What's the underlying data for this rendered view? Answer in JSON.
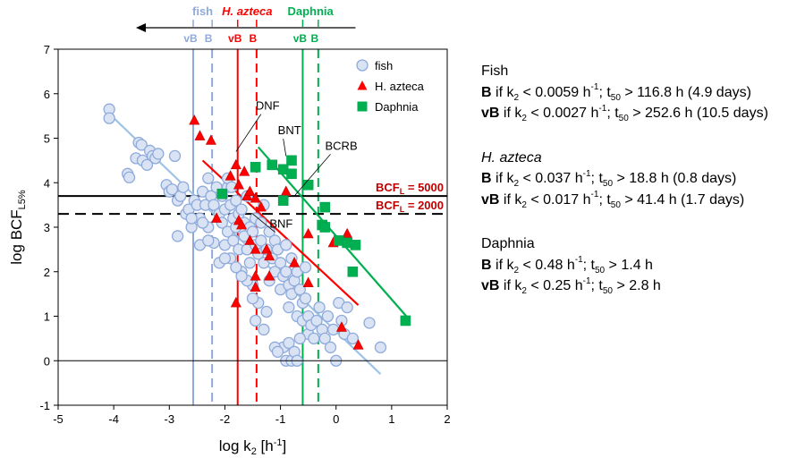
{
  "chart_data": {
    "type": "scatter",
    "title": "",
    "xlabel": "log k",
    "xlabel_sub": "2",
    "xlabel_unit_base": " [h",
    "xlabel_unit_sup": "-1",
    "xlabel_unit_close": "]",
    "ylabel": "log BCF",
    "ylabel_sub": "L5%",
    "xlim": [
      -5,
      2
    ],
    "ylim": [
      -1,
      7
    ],
    "xticks": [
      -5,
      -4,
      -3,
      -2,
      -1,
      0,
      1,
      2
    ],
    "yticks": [
      -1,
      0,
      1,
      2,
      3,
      4,
      5,
      6,
      7
    ],
    "grid": false,
    "legend_position": "top-right",
    "series": [
      {
        "name": "fish",
        "marker": "circle",
        "color": "#dae3f3",
        "edge_color": "#8eaadb",
        "points": [
          [
            -4.08,
            5.65
          ],
          [
            -4.08,
            5.45
          ],
          [
            -3.75,
            4.2
          ],
          [
            -3.72,
            4.12
          ],
          [
            -3.6,
            4.55
          ],
          [
            -3.55,
            4.9
          ],
          [
            -3.5,
            4.85
          ],
          [
            -3.48,
            4.5
          ],
          [
            -3.4,
            4.4
          ],
          [
            -3.35,
            4.72
          ],
          [
            -3.3,
            4.6
          ],
          [
            -3.25,
            4.55
          ],
          [
            -3.2,
            4.65
          ],
          [
            -3.05,
            3.95
          ],
          [
            -3.0,
            3.8
          ],
          [
            -2.95,
            3.85
          ],
          [
            -2.9,
            4.6
          ],
          [
            -2.85,
            3.6
          ],
          [
            -2.85,
            2.8
          ],
          [
            -2.8,
            3.7
          ],
          [
            -2.75,
            3.9
          ],
          [
            -2.7,
            3.3
          ],
          [
            -2.65,
            3.4
          ],
          [
            -2.6,
            3.0
          ],
          [
            -2.55,
            3.6
          ],
          [
            -2.5,
            3.5
          ],
          [
            -2.45,
            3.2
          ],
          [
            -2.45,
            2.6
          ],
          [
            -2.4,
            3.8
          ],
          [
            -2.35,
            3.5
          ],
          [
            -2.3,
            4.1
          ],
          [
            -2.3,
            3.0
          ],
          [
            -2.25,
            3.7
          ],
          [
            -2.2,
            2.65
          ],
          [
            -2.2,
            3.5
          ],
          [
            -2.15,
            3.9
          ],
          [
            -2.1,
            3.3
          ],
          [
            -2.1,
            2.2
          ],
          [
            -2.05,
            3.7
          ],
          [
            -2.05,
            3.1
          ],
          [
            -2.0,
            3.4
          ],
          [
            -2.0,
            2.6
          ],
          [
            -1.95,
            3.9
          ],
          [
            -1.95,
            2.9
          ],
          [
            -1.9,
            3.5
          ],
          [
            -1.9,
            2.3
          ],
          [
            -1.85,
            3.2
          ],
          [
            -1.85,
            2.7
          ],
          [
            -1.8,
            3.6
          ],
          [
            -1.8,
            3.0
          ],
          [
            -1.75,
            3.3
          ],
          [
            -1.75,
            2.5
          ],
          [
            -1.7,
            3.4
          ],
          [
            -1.7,
            2.0
          ],
          [
            -1.65,
            3.1
          ],
          [
            -1.65,
            2.8
          ],
          [
            -1.6,
            2.5
          ],
          [
            -1.6,
            3.7
          ],
          [
            -1.55,
            3.0
          ],
          [
            -1.55,
            2.2
          ],
          [
            -1.5,
            2.9
          ],
          [
            -1.5,
            1.7
          ],
          [
            -1.45,
            2.6
          ],
          [
            -1.45,
            3.2
          ],
          [
            -1.4,
            1.3
          ],
          [
            -1.4,
            2.4
          ],
          [
            -1.35,
            3.1
          ],
          [
            -1.35,
            2.7
          ],
          [
            -1.3,
            2.2
          ],
          [
            -1.3,
            3.5
          ],
          [
            -1.25,
            2.5
          ],
          [
            -1.2,
            1.8
          ],
          [
            -1.2,
            2.9
          ],
          [
            -1.15,
            2.3
          ],
          [
            -1.1,
            2.0
          ],
          [
            -1.1,
            2.7
          ],
          [
            -1.05,
            2.5
          ],
          [
            -1.0,
            1.6
          ],
          [
            -1.0,
            2.2
          ],
          [
            -0.95,
            1.9
          ],
          [
            -0.9,
            2.6
          ],
          [
            -0.9,
            2.0
          ],
          [
            -0.85,
            1.7
          ],
          [
            -0.85,
            1.2
          ],
          [
            -0.8,
            1.5
          ],
          [
            -0.8,
            2.3
          ],
          [
            -0.75,
            1.8
          ],
          [
            -0.7,
            1.0
          ],
          [
            -0.7,
            2.0
          ],
          [
            -0.65,
            1.6
          ],
          [
            -0.6,
            1.3
          ],
          [
            -0.6,
            0.9
          ],
          [
            -0.55,
            1.4
          ],
          [
            -0.55,
            2.1
          ],
          [
            -0.5,
            0.6
          ],
          [
            -0.5,
            1.0
          ],
          [
            -0.45,
            0.8
          ],
          [
            -0.4,
            0.5
          ],
          [
            -0.35,
            0.9
          ],
          [
            -0.3,
            1.2
          ],
          [
            -0.25,
            0.7
          ],
          [
            -0.2,
            0.5
          ],
          [
            -0.15,
            1.0
          ],
          [
            -0.1,
            0.3
          ],
          [
            -0.05,
            0.7
          ],
          [
            0.0,
            0.0
          ],
          [
            0.05,
            1.3
          ],
          [
            0.1,
            0.9
          ],
          [
            0.15,
            0.6
          ],
          [
            0.2,
            1.2
          ],
          [
            0.3,
            0.5
          ],
          [
            0.6,
            0.85
          ],
          [
            0.8,
            0.3
          ],
          [
            -0.95,
            0.3
          ],
          [
            -0.9,
            0.0
          ],
          [
            -0.85,
            0.4
          ],
          [
            -0.8,
            0.0
          ],
          [
            -0.75,
            0.2
          ],
          [
            -1.1,
            0.3
          ],
          [
            -1.05,
            0.2
          ],
          [
            -0.7,
            0.0
          ],
          [
            -0.65,
            0.5
          ],
          [
            -1.3,
            0.7
          ],
          [
            -1.45,
            0.9
          ],
          [
            -1.25,
            1.1
          ],
          [
            -1.5,
            1.4
          ],
          [
            -1.6,
            1.8
          ],
          [
            -1.7,
            1.9
          ],
          [
            -1.8,
            2.1
          ],
          [
            -2.0,
            2.3
          ],
          [
            -2.3,
            2.7
          ],
          [
            -2.4,
            3.1
          ],
          [
            -2.6,
            3.2
          ],
          [
            -1.95,
            4.1
          ],
          [
            -1.88,
            3.9
          ]
        ]
      },
      {
        "name": "H. azteca",
        "marker": "triangle",
        "color": "#ff0000",
        "edge_color": "#c00000",
        "points": [
          [
            -2.55,
            5.4
          ],
          [
            -2.45,
            5.05
          ],
          [
            -2.25,
            4.95
          ],
          [
            -1.9,
            4.15
          ],
          [
            -1.8,
            4.4
          ],
          [
            -1.75,
            3.95
          ],
          [
            -1.65,
            4.25
          ],
          [
            -1.6,
            3.7
          ],
          [
            -1.55,
            3.8
          ],
          [
            -1.45,
            3.65
          ],
          [
            -1.35,
            3.45
          ],
          [
            -2.15,
            3.2
          ],
          [
            -1.75,
            3.15
          ],
          [
            -1.7,
            3.05
          ],
          [
            -1.45,
            2.5
          ],
          [
            -1.25,
            2.5
          ],
          [
            -1.2,
            2.35
          ],
          [
            -1.45,
            1.9
          ],
          [
            -1.2,
            1.9
          ],
          [
            -1.45,
            1.65
          ],
          [
            -1.8,
            1.3
          ],
          [
            -0.75,
            2.2
          ],
          [
            -0.9,
            3.8
          ],
          [
            -0.5,
            2.85
          ],
          [
            -0.5,
            1.75
          ],
          [
            -0.05,
            2.65
          ],
          [
            0.2,
            2.85
          ],
          [
            0.1,
            0.75
          ],
          [
            0.4,
            0.35
          ],
          [
            -1.55,
            2.7
          ]
        ]
      },
      {
        "name": "Daphnia",
        "marker": "square",
        "color": "#00b050",
        "edge_color": "#00a050",
        "points": [
          [
            -2.05,
            3.75
          ],
          [
            -1.45,
            4.35
          ],
          [
            -1.15,
            4.4
          ],
          [
            -0.95,
            4.3
          ],
          [
            -0.8,
            4.5
          ],
          [
            -0.8,
            4.2
          ],
          [
            -0.95,
            3.6
          ],
          [
            -0.5,
            3.95
          ],
          [
            -0.2,
            3.45
          ],
          [
            -0.25,
            3.05
          ],
          [
            -0.2,
            3.0
          ],
          [
            0.05,
            2.7
          ],
          [
            0.2,
            2.65
          ],
          [
            0.35,
            2.6
          ],
          [
            0.3,
            2.0
          ],
          [
            1.25,
            0.9
          ]
        ]
      }
    ],
    "trendlines": [
      {
        "name": "fish-trend",
        "color": "#9dc3e6",
        "x": [
          -4.08,
          0.8
        ],
        "y": [
          5.55,
          -0.3
        ]
      },
      {
        "name": "azteca-trend",
        "color": "#ff0000",
        "x": [
          -2.4,
          0.4
        ],
        "y": [
          4.5,
          1.25
        ]
      },
      {
        "name": "daphnia-trend",
        "color": "#00b050",
        "x": [
          -1.4,
          1.3
        ],
        "y": [
          4.8,
          0.95
        ]
      }
    ],
    "vertical_lines": [
      {
        "name": "fish-vB",
        "x": -2.57,
        "color": "#8eaadb",
        "dashed": false
      },
      {
        "name": "fish-B",
        "x": -2.23,
        "color": "#8eaadb",
        "dashed": true
      },
      {
        "name": "azteca-vB",
        "x": -1.77,
        "color": "#ff0000",
        "dashed": false
      },
      {
        "name": "azteca-B",
        "x": -1.43,
        "color": "#ff0000",
        "dashed": true
      },
      {
        "name": "daphnia-vB",
        "x": -0.6,
        "color": "#00b050",
        "dashed": false
      },
      {
        "name": "daphnia-B",
        "x": -0.32,
        "color": "#00b050",
        "dashed": true
      }
    ],
    "horizontal_lines": [
      {
        "name": "bcfl-5000",
        "y": 3.7,
        "dashed": false,
        "label": "BCF",
        "label_sub": "L",
        "label_value": " = 5000"
      },
      {
        "name": "bcfl-2000",
        "y": 3.3,
        "dashed": true,
        "label": "BCF",
        "label_sub": "L",
        "label_value": " = 2000"
      }
    ],
    "annotations": [
      {
        "name": "dnf",
        "text": "DNF",
        "x": -1.35,
        "y": 5.6,
        "point_x": -1.8,
        "point_y": 4.7
      },
      {
        "name": "bnt",
        "text": "BNT",
        "x": -0.95,
        "y": 5.05,
        "point_x": -0.9,
        "point_y": 4.6
      },
      {
        "name": "bcrb",
        "text": "BCRB",
        "x": -0.1,
        "y": 4.7,
        "point_x": -0.75,
        "point_y": 3.7
      },
      {
        "name": "bnf",
        "text": "BNF",
        "x": -1.1,
        "y": 2.95,
        "point_x": -1.5,
        "point_y": 3.3
      }
    ],
    "top_header": {
      "groups": [
        {
          "name": "fish",
          "label": "fish",
          "color": "#8eaadb",
          "italic": false,
          "vb_label": "vB",
          "b_label": "B",
          "vb_x": -2.57,
          "b_x": -2.23
        },
        {
          "name": "azteca",
          "label": "H. azteca",
          "color": "#ff0000",
          "italic": true,
          "vb_label": "vB",
          "b_label": "B",
          "vb_x": -1.77,
          "b_x": -1.43
        },
        {
          "name": "daphnia",
          "label": "Daphnia",
          "color": "#00b050",
          "italic": false,
          "vb_label": "vB",
          "b_label": "B",
          "vb_x": -0.6,
          "b_x": -0.32
        }
      ],
      "arrow_from_x": 0.35,
      "arrow_to_x": -3.6
    }
  },
  "notes": {
    "fish": {
      "title": "Fish",
      "b_line": {
        "label": "B",
        "pre": " if k",
        "k_sub": "2",
        "cond": " < 0.0059 h",
        "unit_sup": "-1",
        "t": "; t",
        "t_sub": "50",
        "rest": " > 116.8 h (4.9 days)"
      },
      "vb_line": {
        "label": "vB",
        "pre": " if k",
        "k_sub": "2",
        "cond": " < 0.0027 h",
        "unit_sup": "-1",
        "t": "; t",
        "t_sub": "50",
        "rest": " > 252.6 h (10.5 days)"
      }
    },
    "azteca": {
      "title": "H. azteca",
      "b_line": {
        "label": "B",
        "pre": " if k",
        "k_sub": "2",
        "cond": " < 0.037 h",
        "unit_sup": "-1",
        "t": "; t",
        "t_sub": "50",
        "rest": " > 18.8 h (0.8 days)"
      },
      "vb_line": {
        "label": "vB",
        "pre": " if k",
        "k_sub": "2",
        "cond": " < 0.017 h",
        "unit_sup": "-1",
        "t": "; t",
        "t_sub": "50",
        "rest": " > 41.4 h (1.7 days)"
      }
    },
    "daphnia": {
      "title": "Daphnia",
      "b_line": {
        "label": "B",
        "pre": " if k",
        "k_sub": "2",
        "cond": " < 0.48 h",
        "unit_sup": "-1",
        "t": "; t",
        "t_sub": "50",
        "rest": " > 1.4 h"
      },
      "vb_line": {
        "label": "vB",
        "pre": " if k",
        "k_sub": "2",
        "cond": " < 0.25 h",
        "unit_sup": "-1",
        "t": "; t",
        "t_sub": "50",
        "rest": " > 2.8 h"
      }
    }
  }
}
